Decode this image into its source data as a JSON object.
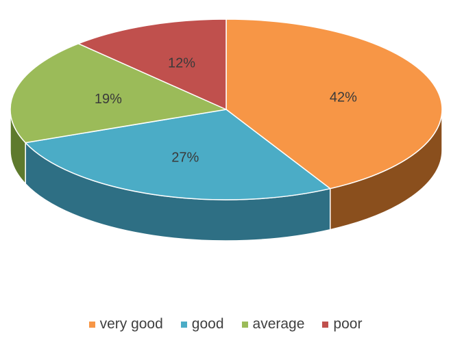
{
  "chart_data": {
    "type": "pie",
    "title": "",
    "categories": [
      "very good",
      "good",
      "average",
      "poor"
    ],
    "values": [
      42,
      27,
      19,
      12
    ],
    "labels": [
      "42%",
      "27%",
      "19%",
      "12%"
    ],
    "colors": {
      "very good": "#F79646",
      "good": "#4BACC6",
      "average": "#9BBB59",
      "poor": "#C0504D"
    },
    "side_colors": {
      "very good": "#8A4F1D",
      "good": "#2E6F84",
      "average": "#5E7A2D",
      "poor": "#7E2C2A"
    },
    "legend_position": "bottom",
    "style": "3d-pie"
  }
}
